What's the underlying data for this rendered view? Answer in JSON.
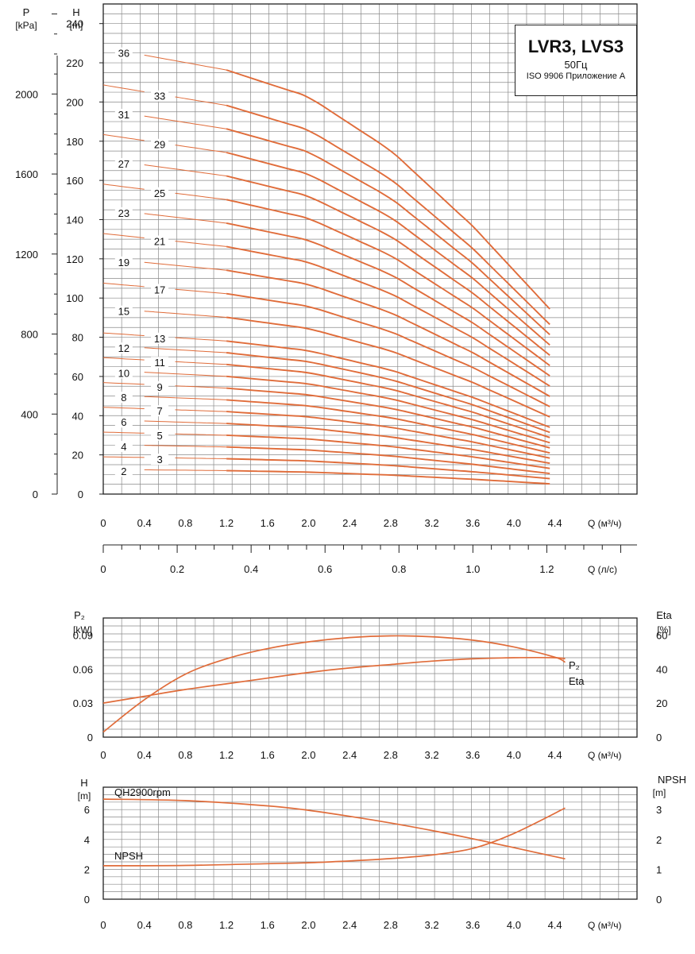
{
  "title": {
    "main": "LVR3, LVS3",
    "frequency": "50Гц",
    "standard": "ISO 9906 Приложение A"
  },
  "colors": {
    "curve": "#e06c3a",
    "grid": "#8a8a8a",
    "axis": "#222222"
  },
  "chart_data": [
    {
      "type": "line",
      "name": "head-curves",
      "axis_labels": {
        "p_name": "P",
        "p_unit": "[kPa]",
        "h_name": "H",
        "h_unit": "[m]",
        "q_m3h": "Q (м³/ч)",
        "q_ls": "Q (л/с)"
      },
      "x_m3h": {
        "range": [
          0,
          5.2
        ],
        "ticks": [
          0,
          0.4,
          0.8,
          1.2,
          1.6,
          2.0,
          2.4,
          2.8,
          3.2,
          3.6,
          4.0,
          4.4
        ],
        "tick_labels": [
          "0",
          "0.4",
          "0.8",
          "1.2",
          "1.6",
          "2.0",
          "2.4",
          "2.8",
          "3.2",
          "3.6",
          "4.0",
          "4.4"
        ]
      },
      "x_ls": {
        "range": [
          0,
          1.444
        ],
        "ticks": [
          0,
          0.2,
          0.4,
          0.6,
          0.8,
          1.0,
          1.2
        ],
        "tick_labels": [
          "0",
          "0.2",
          "0.4",
          "0.6",
          "0.8",
          "1.0",
          "1.2"
        ]
      },
      "y_head": {
        "range": [
          0,
          250
        ],
        "ticks": [
          0,
          20,
          40,
          60,
          80,
          100,
          120,
          140,
          160,
          180,
          200,
          220,
          240
        ],
        "tick_labels": [
          "0",
          "20",
          "40",
          "60",
          "80",
          "100",
          "120",
          "140",
          "160",
          "180",
          "200",
          "220",
          "240"
        ]
      },
      "y_pressure": {
        "range": [
          0,
          2450
        ],
        "ticks": [
          0,
          400,
          800,
          1200,
          1600,
          2000
        ],
        "tick_labels": [
          "0",
          "400",
          "800",
          "1200",
          "1600",
          "2000"
        ]
      },
      "curve_q": [
        0,
        1.2,
        2.0,
        2.8,
        3.6,
        4.45
      ],
      "curve_profile": [
        1.0,
        0.95,
        0.89,
        0.77,
        0.6,
        0.39
      ],
      "curves": [
        {
          "label": "2",
          "stages": 2,
          "h0": 12.6,
          "label_q": 0.2,
          "label_side": "below"
        },
        {
          "label": "3",
          "stages": 3,
          "h0": 19.0,
          "label_q": 0.55,
          "label_side": "below"
        },
        {
          "label": "4",
          "stages": 4,
          "h0": 25.3,
          "label_q": 0.2,
          "label_side": "below"
        },
        {
          "label": "5",
          "stages": 5,
          "h0": 31.6,
          "label_q": 0.55,
          "label_side": "below"
        },
        {
          "label": "6",
          "stages": 6,
          "h0": 37.9,
          "label_q": 0.2,
          "label_side": "below"
        },
        {
          "label": "7",
          "stages": 7,
          "h0": 44.3,
          "label_q": 0.55,
          "label_side": "below"
        },
        {
          "label": "8",
          "stages": 8,
          "h0": 50.6,
          "label_q": 0.2,
          "label_side": "below"
        },
        {
          "label": "9",
          "stages": 9,
          "h0": 56.9,
          "label_q": 0.55,
          "label_side": "below"
        },
        {
          "label": "10",
          "stages": 10,
          "h0": 63.2,
          "label_q": 0.2,
          "label_side": "below"
        },
        {
          "label": "11",
          "stages": 11,
          "h0": 69.6,
          "label_q": 0.55,
          "label_side": "below"
        },
        {
          "label": "12",
          "stages": 12,
          "h0": 75.9,
          "label_q": 0.2,
          "label_side": "below"
        },
        {
          "label": "13",
          "stages": 13,
          "h0": 82.2,
          "label_q": 0.55,
          "label_side": "below"
        },
        {
          "label": "15",
          "stages": 15,
          "h0": 94.9,
          "label_q": 0.2,
          "label_side": "below"
        },
        {
          "label": "17",
          "stages": 17,
          "h0": 107.6,
          "label_q": 0.55,
          "label_side": "below"
        },
        {
          "label": "19",
          "stages": 19,
          "h0": 120.2,
          "label_q": 0.2,
          "label_side": "below"
        },
        {
          "label": "21",
          "stages": 21,
          "h0": 132.9,
          "label_q": 0.55,
          "label_side": "below"
        },
        {
          "label": "23",
          "stages": 23,
          "h0": 145.5,
          "label_q": 0.2,
          "label_side": "below"
        },
        {
          "label": "25",
          "stages": 25,
          "h0": 158.1,
          "label_q": 0.55,
          "label_side": "below"
        },
        {
          "label": "27",
          "stages": 27,
          "h0": 170.8,
          "label_q": 0.2,
          "label_side": "below"
        },
        {
          "label": "29",
          "stages": 29,
          "h0": 183.4,
          "label_q": 0.55,
          "label_side": "below"
        },
        {
          "label": "31",
          "stages": 31,
          "h0": 196.1,
          "label_q": 0.2,
          "label_side": "below"
        },
        {
          "label": "33",
          "stages": 33,
          "h0": 208.7,
          "label_q": 0.55,
          "label_side": "below"
        },
        {
          "label": "36",
          "stages": 36,
          "h0": 227.7,
          "label_q": 0.2,
          "label_side": "below"
        }
      ]
    },
    {
      "type": "line",
      "name": "power-efficiency",
      "axis_labels": {
        "p2_name": "P₂",
        "p2_unit": "[kW]",
        "eta_name": "Eta",
        "eta_unit": "[%]",
        "q": "Q (м³/ч)"
      },
      "x": {
        "range": [
          0,
          5.2
        ],
        "ticks": [
          0,
          0.4,
          0.8,
          1.2,
          1.6,
          2.0,
          2.4,
          2.8,
          3.2,
          3.6,
          4.0,
          4.4
        ],
        "tick_labels": [
          "0",
          "0.4",
          "0.8",
          "1.2",
          "1.6",
          "2.0",
          "2.4",
          "2.8",
          "3.2",
          "3.6",
          "4.0",
          "4.4"
        ]
      },
      "y_left": {
        "range": [
          0,
          0.105
        ],
        "ticks": [
          0,
          0.03,
          0.06,
          0.09
        ],
        "tick_labels": [
          "0",
          "0.03",
          "0.06",
          "0.09"
        ]
      },
      "y_right": {
        "range": [
          0,
          70
        ],
        "ticks": [
          0,
          20,
          40,
          60
        ],
        "tick_labels": [
          "0",
          "20",
          "40",
          "60"
        ]
      },
      "series": [
        {
          "name": "P₂",
          "axis": "left",
          "x": [
            0,
            0.4,
            0.8,
            1.2,
            1.6,
            2.0,
            2.4,
            2.8,
            3.2,
            3.6,
            4.0,
            4.4,
            4.5
          ],
          "y": [
            0.03,
            0.036,
            0.042,
            0.047,
            0.052,
            0.057,
            0.061,
            0.064,
            0.067,
            0.069,
            0.07,
            0.07,
            0.069
          ]
        },
        {
          "name": "Eta",
          "axis": "right",
          "x": [
            0,
            0.4,
            0.8,
            1.2,
            1.6,
            2.0,
            2.4,
            2.8,
            3.2,
            3.6,
            4.0,
            4.4,
            4.5
          ],
          "y": [
            3,
            22,
            37,
            46,
            52,
            56,
            58.5,
            59.5,
            59,
            57,
            53,
            47,
            44
          ]
        }
      ],
      "series_labels": [
        "P₂",
        "Eta"
      ]
    },
    {
      "type": "line",
      "name": "npsh",
      "axis_labels": {
        "h_name": "H",
        "h_unit": "[m]",
        "npsh_name": "NPSH",
        "npsh_unit": "[m]",
        "q": "Q (м³/ч)"
      },
      "x": {
        "range": [
          0,
          5.2
        ],
        "ticks": [
          0,
          0.4,
          0.8,
          1.2,
          1.6,
          2.0,
          2.4,
          2.8,
          3.2,
          3.6,
          4.0,
          4.4
        ],
        "tick_labels": [
          "0",
          "0.4",
          "0.8",
          "1.2",
          "1.6",
          "2.0",
          "2.4",
          "2.8",
          "3.2",
          "3.6",
          "4.0",
          "4.4"
        ]
      },
      "y_left": {
        "range": [
          0,
          7.5
        ],
        "ticks": [
          0,
          2,
          4,
          6
        ],
        "tick_labels": [
          "0",
          "2",
          "4",
          "6"
        ]
      },
      "y_right": {
        "range": [
          0,
          3.75
        ],
        "ticks": [
          0,
          1,
          2,
          3
        ],
        "tick_labels": [
          "0",
          "1",
          "2",
          "3"
        ]
      },
      "series": [
        {
          "name": "QH2900rpm",
          "axis": "left",
          "x": [
            0,
            0.8,
            1.6,
            2.0,
            2.4,
            2.8,
            3.2,
            3.6,
            4.0,
            4.5
          ],
          "y": [
            6.7,
            6.6,
            6.25,
            5.95,
            5.55,
            5.1,
            4.6,
            4.05,
            3.45,
            2.7
          ]
        },
        {
          "name": "NPSH",
          "axis": "right",
          "x": [
            0,
            0.8,
            1.6,
            2.0,
            2.4,
            2.8,
            3.2,
            3.6,
            4.0,
            4.5
          ],
          "y": [
            1.12,
            1.13,
            1.19,
            1.22,
            1.28,
            1.36,
            1.48,
            1.7,
            2.2,
            3.05
          ]
        }
      ],
      "series_labels": [
        "QH2900rpm",
        "NPSH"
      ]
    }
  ]
}
